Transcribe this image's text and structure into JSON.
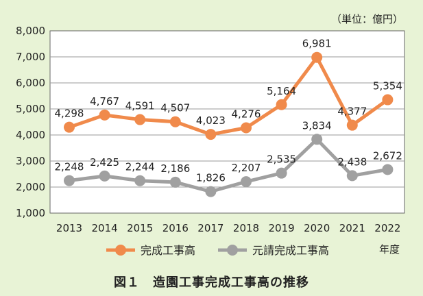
{
  "chart_data": {
    "type": "line",
    "unit": "（単位：億円）",
    "x": [
      "2013",
      "2014",
      "2015",
      "2016",
      "2017",
      "2018",
      "2019",
      "2020",
      "2021",
      "2022"
    ],
    "x_unit": "年度",
    "ylim": [
      1000,
      8000
    ],
    "yticks": [
      1000,
      2000,
      3000,
      4000,
      5000,
      6000,
      7000,
      8000
    ],
    "ytick_labels": [
      "1,000",
      "2,000",
      "3,000",
      "4,000",
      "5,000",
      "6,000",
      "7,000",
      "8,000"
    ],
    "grid": true,
    "legend_position": "bottom",
    "series": [
      {
        "name": "完成工事高",
        "color": "#f08a4b",
        "values": [
          4298,
          4767,
          4591,
          4507,
          4023,
          4276,
          5164,
          6981,
          4377,
          5354
        ],
        "labels": [
          "4,298",
          "4,767",
          "4,591",
          "4,507",
          "4,023",
          "4,276",
          "5,164",
          "6,981",
          "4,377",
          "5,354"
        ]
      },
      {
        "name": "元請完成工事高",
        "color": "#a0a0a0",
        "values": [
          2248,
          2425,
          2244,
          2186,
          1826,
          2207,
          2535,
          3834,
          2438,
          2672
        ],
        "labels": [
          "2,248",
          "2,425",
          "2,244",
          "2,186",
          "1,826",
          "2,207",
          "2,535",
          "3,834",
          "2,438",
          "2,672"
        ]
      }
    ]
  },
  "caption": "図１　造園工事完成工事高の推移"
}
